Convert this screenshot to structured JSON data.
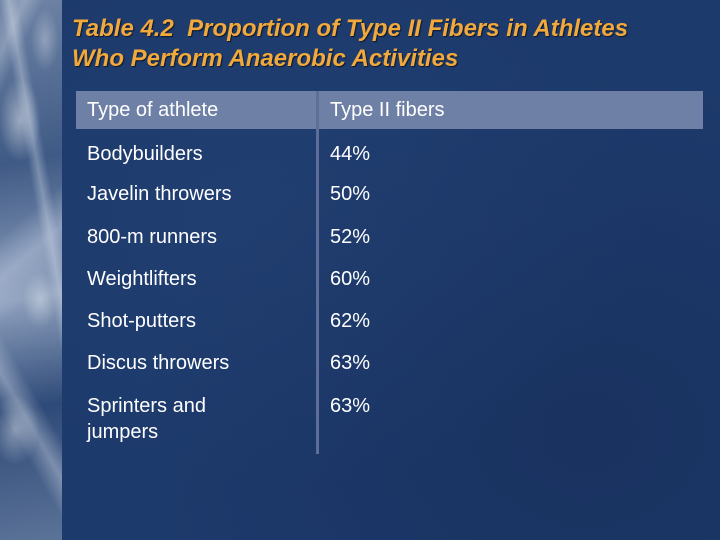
{
  "slide": {
    "title_line1": "Table 4.2  Proportion of Type II Fibers in Athletes",
    "title_line2": "Who Perform Anaerobic Activities",
    "title_color": "#f2a93b",
    "background_color": "#1d3a6c",
    "header_bar_color": "#6e80a6"
  },
  "table": {
    "headers": [
      "Type of athlete",
      "Type II fibers"
    ],
    "rows": [
      {
        "athlete": "Bodybuilders",
        "fibers": "44%"
      },
      {
        "athlete": "Javelin throwers",
        "fibers": "50%"
      },
      {
        "athlete": "800-m runners",
        "fibers": "52%"
      },
      {
        "athlete": "Weightlifters",
        "fibers": "60%"
      },
      {
        "athlete": "Shot-putters",
        "fibers": "62%"
      },
      {
        "athlete": "Discus throwers",
        "fibers": "63%"
      },
      {
        "athlete": "Sprinters and jumpers",
        "fibers": "63%"
      }
    ]
  }
}
